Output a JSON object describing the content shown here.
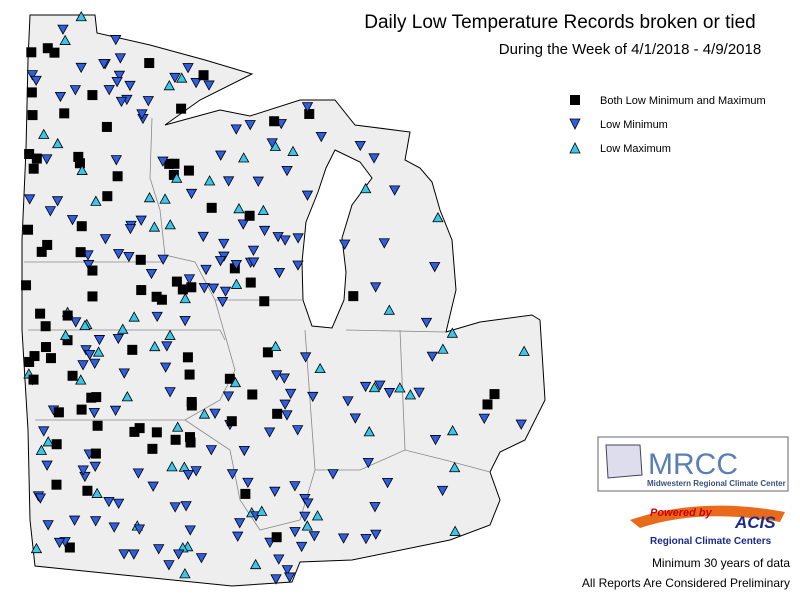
{
  "title": "Daily Low Temperature Records broken or tied",
  "subtitle": "During the Week of 4/1/2018 - 4/9/2018",
  "legend": [
    {
      "label": "Both Low Minimum and Maximum"
    },
    {
      "label": "Low Minimum"
    },
    {
      "label": "Low Maximum"
    }
  ],
  "logos": {
    "mrcc": "MRCC",
    "mrcc_name": "Midwestern Regional Climate Center",
    "powered_by": "Powered by",
    "acis": "ACIS",
    "rcc": "Regional Climate Centers"
  },
  "notes": [
    "Minimum 30 years of data",
    "All Reports Are Considered Preliminary"
  ]
}
